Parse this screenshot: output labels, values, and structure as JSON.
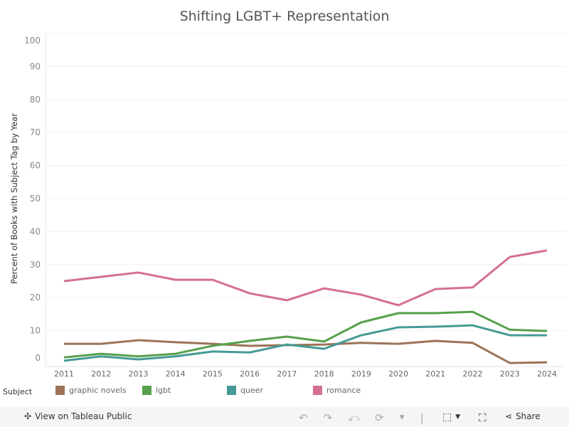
{
  "chart_data": {
    "type": "line",
    "title": "Shifting LGBT+ Representation",
    "xlabel": "",
    "ylabel": "Percent of Books with Subject Tag by Year",
    "ylim": [
      0,
      100
    ],
    "yticks": [
      "0",
      "10",
      "20",
      "30",
      "40",
      "50",
      "60",
      "70",
      "80",
      "90",
      "100"
    ],
    "grid": true,
    "legend_position": "bottom",
    "legend_title": "Subject",
    "x": [
      "2011",
      "2012",
      "2013",
      "2014",
      "2015",
      "2016",
      "2017",
      "2018",
      "2019",
      "2020",
      "2021",
      "2022",
      "2023",
      "2024"
    ],
    "series": [
      {
        "name": "graphic novels",
        "color": "#9c7356",
        "values": [
          6.0,
          6.0,
          7.1,
          6.5,
          6.0,
          5.4,
          5.6,
          5.8,
          6.3,
          6.0,
          6.9,
          6.3,
          0.2,
          0.4
        ]
      },
      {
        "name": "lgbt",
        "color": "#57a04c",
        "values": [
          1.9,
          3.0,
          2.2,
          3.0,
          5.4,
          6.9,
          8.2,
          6.7,
          12.5,
          15.3,
          15.3,
          15.7,
          10.3,
          9.9
        ]
      },
      {
        "name": "queer",
        "color": "#469a96",
        "values": [
          0.9,
          2.2,
          1.3,
          2.2,
          3.7,
          3.4,
          5.8,
          4.5,
          8.6,
          11.0,
          11.2,
          11.6,
          8.6,
          8.6
        ]
      },
      {
        "name": "romance",
        "color": "#d4708f",
        "values": [
          25.0,
          26.3,
          27.6,
          25.4,
          25.4,
          21.3,
          19.2,
          22.8,
          20.9,
          17.7,
          22.6,
          23.1,
          32.3,
          34.3
        ]
      }
    ]
  },
  "toolbar": {
    "view_label": "View on Tableau Public",
    "share_label": "Share"
  }
}
